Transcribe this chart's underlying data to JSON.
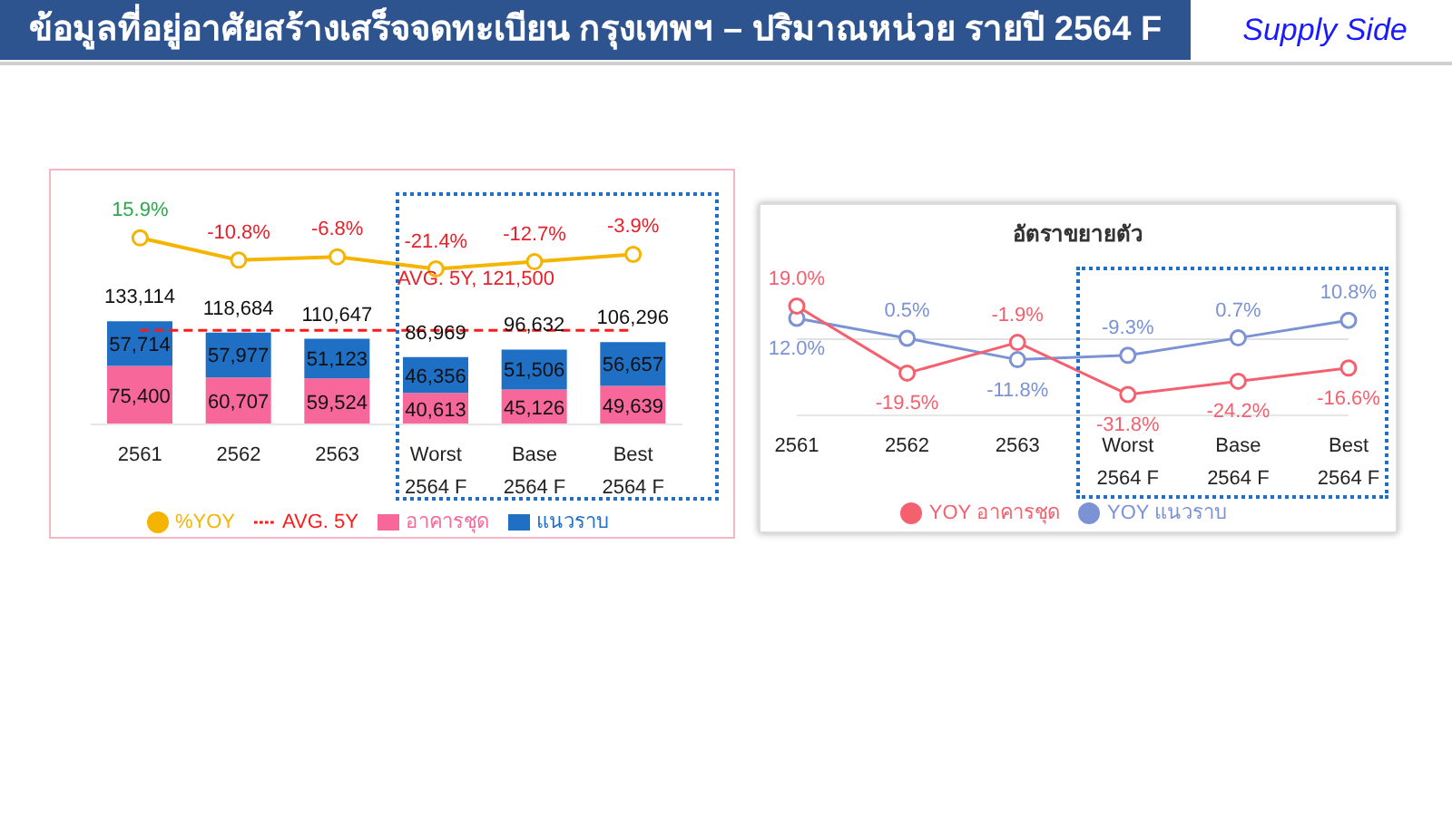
{
  "chart_data": [
    {
      "type": "bar",
      "title": "ข้อมูลที่อยู่อาศัยสร้างเสร็จจดทะเบียน กรุงเทพฯ – ปริมาณหน่วย รายปี 2564 F",
      "categories": [
        "2561",
        "2562",
        "2563",
        "Worst 2564 F",
        "Base 2564 F",
        "Best 2564 F"
      ],
      "stacked": true,
      "legend": "bottom",
      "totals": [
        "133,114",
        "118,684",
        "110,647",
        "86,969",
        "96,632",
        "106,296"
      ],
      "annotations": [
        "AVG. 5Y,  121,500"
      ],
      "series": [
        {
          "name": "อาคารชุด",
          "type": "bar",
          "color": "#f7679a",
          "values": [
            75400,
            60707,
            59524,
            40613,
            45126,
            49639
          ],
          "value_labels": [
            "75,400",
            "60,707",
            "59,524",
            "40,613",
            "45,126",
            "49,639"
          ]
        },
        {
          "name": "แนวราบ",
          "type": "bar",
          "color": "#1f6fc5",
          "values": [
            57714,
            57977,
            51123,
            46356,
            51506,
            56657
          ],
          "value_labels": [
            "57,714",
            "57,977",
            "51,123",
            "46,356",
            "51,506",
            "56,657"
          ]
        },
        {
          "name": "AVG. 5Y",
          "type": "line",
          "line_style": "dashed",
          "marker": "none",
          "color": "#ff1a1a",
          "values": [
            121500,
            121500,
            121500,
            121500,
            121500,
            121500
          ]
        },
        {
          "name": "%YOY",
          "type": "line",
          "axis": "y2",
          "marker": "circle",
          "color": "#f5b400",
          "values": [
            15.9,
            -10.8,
            -6.8,
            -21.4,
            -12.7,
            -3.9
          ],
          "value_labels": [
            "15.9%",
            "-10.8%",
            "-6.8%",
            "-21.4%",
            "-12.7%",
            "-3.9%"
          ]
        }
      ]
    },
    {
      "type": "line",
      "title": "อัตราขยายตัว",
      "subtitle": "Supply Side",
      "categories": [
        "2561",
        "2562",
        "2563",
        "Worst 2564 F",
        "Base 2564 F",
        "Best 2564 F"
      ],
      "legend": "bottom",
      "marker": "circle",
      "ref_lines": [
        {
          "axis": "y",
          "value": 0,
          "color": "#e0e0e0"
        }
      ],
      "series": [
        {
          "name": "YOY  แนวราบ",
          "color": "#7b93d4",
          "values": [
            12.0,
            0.5,
            -11.8,
            -9.3,
            0.7,
            10.8
          ],
          "value_labels": [
            "12.0%",
            "0.5%",
            "-11.8%",
            "-9.3%",
            "0.7%",
            "10.8%"
          ]
        },
        {
          "name": "YOY  อาคารชุด",
          "color": "#f4606e",
          "values": [
            19.0,
            -19.5,
            -1.9,
            -31.8,
            -24.2,
            -16.6
          ],
          "value_labels": [
            "19.0%",
            "-19.5%",
            "-1.9%",
            "-31.8%",
            "-24.2%",
            "-16.6%"
          ]
        }
      ]
    }
  ]
}
